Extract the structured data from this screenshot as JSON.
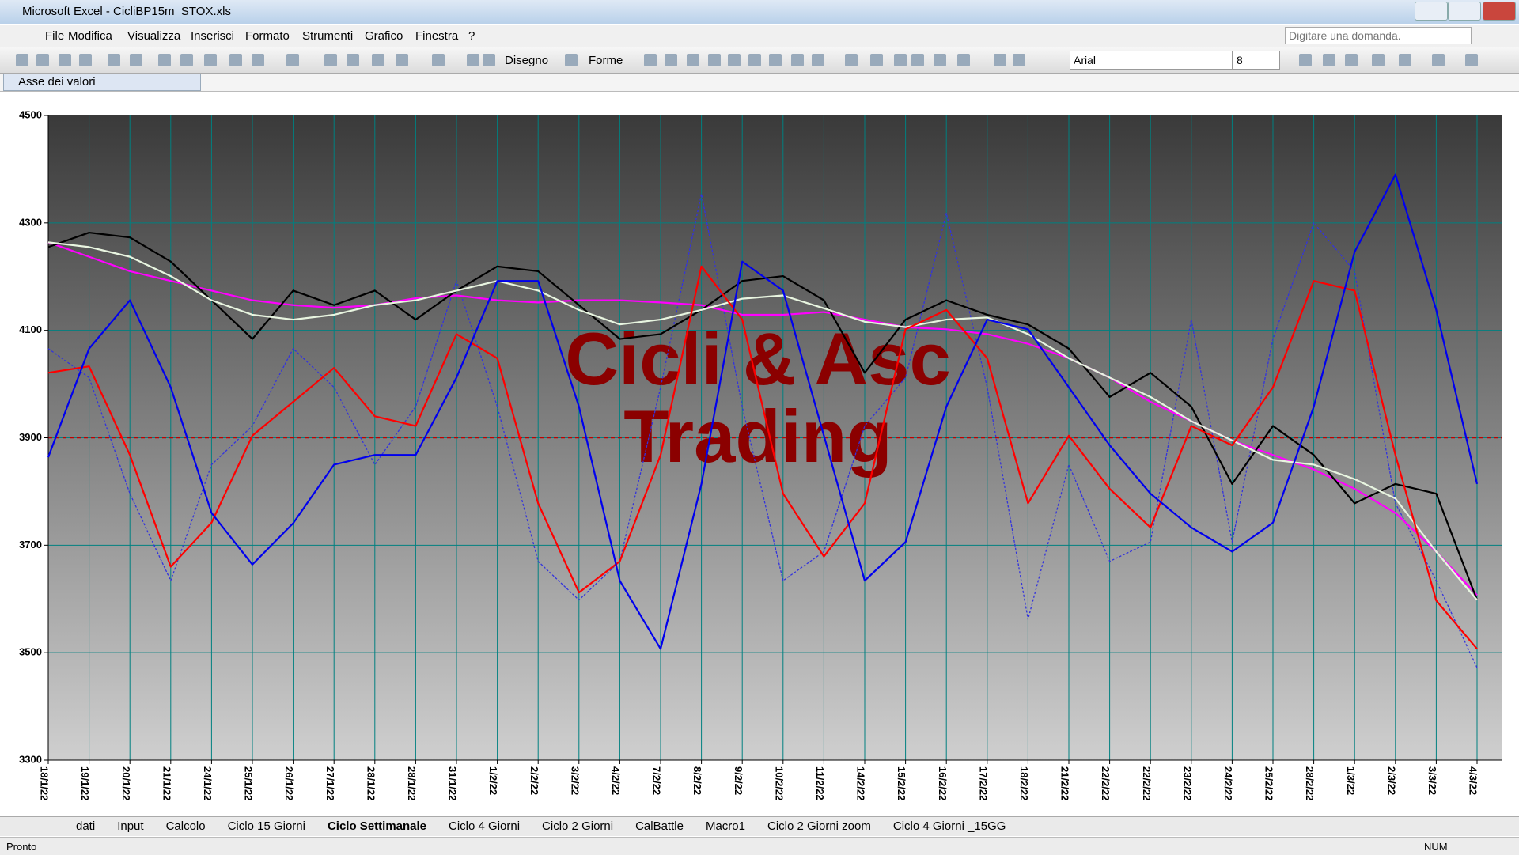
{
  "window": {
    "title": "Microsoft Excel - CicliBP15m_STOX.xls"
  },
  "menu": [
    "File",
    "Modifica",
    "Visualizza",
    "Inserisci",
    "Formato",
    "Strumenti",
    "Grafico",
    "Finestra",
    "?"
  ],
  "help_box": "Digitare una domanda.",
  "toolbar": {
    "draw": "Disegno",
    "shapes": "Forme",
    "font": "Arial",
    "size": "8"
  },
  "name_box": "Asse dei valori",
  "chart_data": {
    "type": "line",
    "annotation": "Cicli & Asc Trading",
    "annotation_color": "#8b0000",
    "categories": [
      "18/1/22",
      "19/1/22",
      "20/1/22",
      "21/1/22",
      "24/1/22",
      "25/1/22",
      "26/1/22",
      "27/1/22",
      "28/1/22",
      "28/1/22",
      "31/1/22",
      "1/2/22",
      "2/2/22",
      "3/2/22",
      "4/2/22",
      "7/2/22",
      "8/2/22",
      "9/2/22",
      "10/2/22",
      "11/2/22",
      "14/2/22",
      "15/2/22",
      "16/2/22",
      "17/2/22",
      "18/2/22",
      "21/2/22",
      "22/2/22",
      "22/2/22",
      "23/2/22",
      "24/2/22",
      "25/2/22",
      "28/2/22",
      "1/3/22",
      "2/3/22",
      "3/3/22",
      "4/3/22"
    ],
    "ylim": [
      3300,
      4500
    ],
    "yticks": [
      3300,
      3500,
      3700,
      3900,
      4100,
      4300,
      4500
    ],
    "grid": true,
    "grid_color": "#008080",
    "reference_line": {
      "value": 3900,
      "color": "#c00000"
    },
    "series": [
      {
        "color": "#3333dd",
        "dashed": true,
        "values": [
          4066,
          4012,
          3796,
          3634,
          3850,
          3922,
          4066,
          3994,
          3850,
          3958,
          4192,
          3958,
          3670,
          3598,
          3670,
          3994,
          4354,
          3958,
          3634,
          3688,
          3922,
          4012,
          4318,
          3994,
          3562,
          3850,
          3670,
          3706,
          4120,
          3706,
          4084,
          4300,
          4210,
          3778,
          3634,
          3472
        ]
      },
      {
        "color": "#ff00ff",
        "values": [
          4264,
          4237,
          4210,
          4192,
          4174,
          4156,
          4147,
          4142,
          4147,
          4160,
          4165,
          4156,
          4152,
          4156,
          4156,
          4152,
          4147,
          4129,
          4129,
          4134,
          4120,
          4106,
          4102,
          4093,
          4075,
          4048,
          4012,
          3967,
          3931,
          3895,
          3868,
          3841,
          3805,
          3760,
          3688,
          3607
        ]
      },
      {
        "color": "#000000",
        "values": [
          4255,
          4282,
          4273,
          4228,
          4156,
          4084,
          4174,
          4147,
          4174,
          4120,
          4174,
          4219,
          4210,
          4147,
          4084,
          4093,
          4138,
          4192,
          4201,
          4156,
          4021,
          4120,
          4156,
          4129,
          4111,
          4066,
          3976,
          4021,
          3958,
          3814,
          3922,
          3868,
          3778,
          3814,
          3796,
          3598
        ]
      },
      {
        "color": "#e8f5e0",
        "values": [
          4264,
          4255,
          4237,
          4201,
          4156,
          4129,
          4120,
          4129,
          4147,
          4156,
          4174,
          4192,
          4174,
          4138,
          4111,
          4120,
          4138,
          4159,
          4165,
          4141,
          4116,
          4106,
          4120,
          4124,
          4093,
          4048,
          4012,
          3976,
          3931,
          3895,
          3859,
          3850,
          3823,
          3787,
          3688,
          3598
        ]
      },
      {
        "color": "#ff0000",
        "values": [
          4021,
          4033,
          3868,
          3660,
          3742,
          3904,
          3967,
          4030,
          3940,
          3922,
          4093,
          4048,
          3778,
          3612,
          3670,
          3868,
          4219,
          4120,
          3796,
          3679,
          3778,
          4102,
          4138,
          4048,
          3778,
          3904,
          3805,
          3733,
          3922,
          3886,
          3994,
          4192,
          4174,
          3868,
          3597,
          3507
        ]
      },
      {
        "color": "#0000ee",
        "values": [
          3864,
          4066,
          4156,
          3994,
          3760,
          3664,
          3741,
          3850,
          3868,
          3868,
          4012,
          4192,
          4192,
          3958,
          3634,
          3507,
          3814,
          4228,
          4174,
          3904,
          3634,
          3706,
          3958,
          4120,
          4102,
          3994,
          3886,
          3796,
          3733,
          3688,
          3742,
          3958,
          4246,
          4390,
          4138,
          3814
        ]
      }
    ]
  },
  "sheet_tabs": [
    "dati",
    "Input",
    "Calcolo",
    "Ciclo 15 Giorni",
    "Ciclo Settimanale",
    "Ciclo 4 Giorni",
    "Ciclo 2 Giorni",
    "CalBattle",
    "Macro1",
    "Ciclo 2 Giorni zoom",
    "Ciclo 4 Giorni _15GG"
  ],
  "active_tab": 4,
  "status": {
    "left": "Pronto",
    "num": "NUM"
  }
}
